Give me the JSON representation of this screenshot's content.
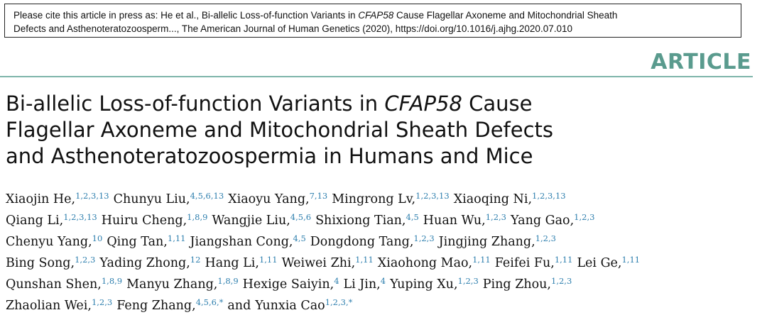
{
  "citation": {
    "lead": "Please cite this article in press as: He et al., Bi-allelic Loss-of-function Variants in ",
    "gene": "CFAP58",
    "rest_line1": " Cause Flagellar Axoneme and Mitochondrial Sheath",
    "line2": "Defects and Asthenoteratozoosperm..., The American Journal of Human Genetics (2020), https://doi.org/10.1016/j.ajhg.2020.07.010"
  },
  "article_label": "ARTICLE",
  "title": {
    "line1_pre": "Bi-allelic Loss-of-function Variants in ",
    "line1_gene": "CFAP58",
    "line1_post": " Cause",
    "line2": "Flagellar Axoneme and Mitochondrial Sheath Defects",
    "line3": "and Asthenoteratozoospermia in Humans and Mice"
  },
  "authors": {
    "lines": [
      [
        {
          "name": "Xiaojin He,",
          "aff": "1,2,3,13"
        },
        {
          "name": "Chunyu Liu,",
          "aff": "4,5,6,13"
        },
        {
          "name": "Xiaoyu Yang,",
          "aff": "7,13"
        },
        {
          "name": "Mingrong Lv,",
          "aff": "1,2,3,13"
        },
        {
          "name": "Xiaoqing Ni,",
          "aff": "1,2,3,13"
        }
      ],
      [
        {
          "name": "Qiang Li,",
          "aff": "1,2,3,13"
        },
        {
          "name": "Huiru Cheng,",
          "aff": "1,8,9"
        },
        {
          "name": "Wangjie Liu,",
          "aff": "4,5,6"
        },
        {
          "name": "Shixiong Tian,",
          "aff": "4,5"
        },
        {
          "name": "Huan Wu,",
          "aff": "1,2,3"
        },
        {
          "name": "Yang Gao,",
          "aff": "1,2,3"
        }
      ],
      [
        {
          "name": "Chenyu Yang,",
          "aff": "10"
        },
        {
          "name": "Qing Tan,",
          "aff": "1,11"
        },
        {
          "name": "Jiangshan Cong,",
          "aff": "4,5"
        },
        {
          "name": "Dongdong Tang,",
          "aff": "1,2,3"
        },
        {
          "name": "Jingjing Zhang,",
          "aff": "1,2,3"
        }
      ],
      [
        {
          "name": "Bing Song,",
          "aff": "1,2,3"
        },
        {
          "name": "Yading Zhong,",
          "aff": "12"
        },
        {
          "name": "Hang Li,",
          "aff": "1,11"
        },
        {
          "name": "Weiwei Zhi,",
          "aff": "1,11"
        },
        {
          "name": "Xiaohong Mao,",
          "aff": "1,11"
        },
        {
          "name": "Feifei Fu,",
          "aff": "1,11"
        },
        {
          "name": "Lei Ge,",
          "aff": "1,11"
        }
      ],
      [
        {
          "name": "Qunshan Shen,",
          "aff": "1,8,9"
        },
        {
          "name": "Manyu Zhang,",
          "aff": "1,8,9"
        },
        {
          "name": "Hexige Saiyin,",
          "aff": "4"
        },
        {
          "name": "Li Jin,",
          "aff": "4"
        },
        {
          "name": "Yuping Xu,",
          "aff": "1,2,3"
        },
        {
          "name": "Ping Zhou,",
          "aff": "1,2,3"
        }
      ],
      [
        {
          "name": "Zhaolian Wei,",
          "aff": "1,2,3"
        },
        {
          "name": "Feng Zhang,",
          "aff": "4,5,6,*"
        },
        {
          "name": "and",
          "aff": ""
        },
        {
          "name": "Yunxia Cao",
          "aff": "1,2,3,*"
        }
      ]
    ]
  }
}
